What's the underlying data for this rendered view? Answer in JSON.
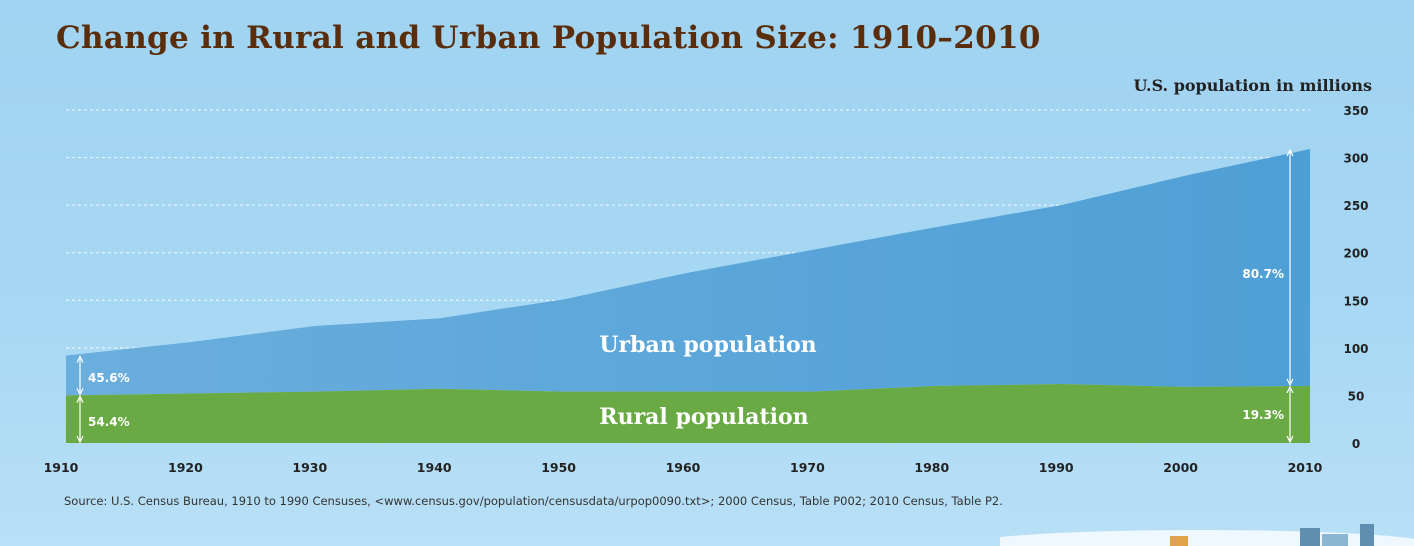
{
  "chart_data": {
    "type": "area",
    "title": "Change in Rural and Urban Population Size: 1910–2010",
    "ylabel": "U.S. population in millions",
    "xlabel": "",
    "x": [
      1910,
      1920,
      1930,
      1940,
      1950,
      1960,
      1970,
      1980,
      1990,
      2000,
      2010
    ],
    "x_ticks": [
      "1910",
      "1920",
      "1930",
      "1940",
      "1950",
      "1960",
      "1970",
      "1980",
      "1990",
      "2000",
      "2010"
    ],
    "y_ticks": [
      "0",
      "50",
      "100",
      "150",
      "200",
      "250",
      "300",
      "350"
    ],
    "ylim": [
      0,
      350
    ],
    "grid": true,
    "stacked": true,
    "series": [
      {
        "name": "Rural population",
        "color": "#6aaa45",
        "values": [
          50,
          52,
          54,
          57,
          54,
          54,
          54,
          60,
          62,
          59,
          60
        ]
      },
      {
        "name": "Urban population",
        "color": "#5aa6d8",
        "values": [
          42,
          54,
          69,
          74,
          97,
          125,
          149,
          167,
          188,
          222,
          249
        ]
      }
    ],
    "annotations": [
      {
        "text": "45.6%",
        "year": 1910,
        "segment": "urban"
      },
      {
        "text": "54.4%",
        "year": 1910,
        "segment": "rural"
      },
      {
        "text": "80.7%",
        "year": 2010,
        "segment": "urban"
      },
      {
        "text": "19.3%",
        "year": 2010,
        "segment": "rural"
      }
    ]
  },
  "source": "Source: U.S. Census Bureau, 1910 to 1990 Censuses, <www.census.gov/population/censusdata/urpop0090.txt>; 2000 Census, Table P002; 2010 Census, Table P2."
}
